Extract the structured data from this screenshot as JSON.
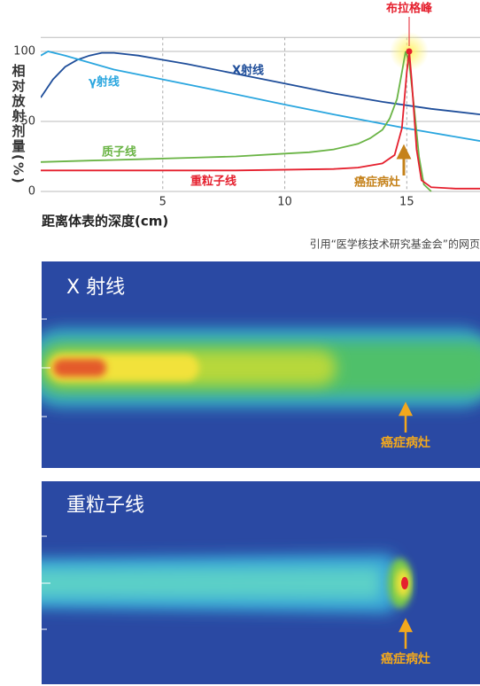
{
  "chart_data": {
    "type": "line",
    "ylabel": "相对放射剂量(%)",
    "xlabel": "距离体表的深度(cm)",
    "xlim": [
      0,
      18
    ],
    "ylim": [
      0,
      110
    ],
    "xticks": [
      5,
      10,
      15
    ],
    "yticks": [
      0,
      50,
      100
    ],
    "grid": true,
    "series": [
      {
        "name": "X射线",
        "color": "#1f4e9a",
        "x": [
          0,
          0.5,
          1,
          1.5,
          2,
          2.5,
          3,
          4,
          5,
          6,
          8,
          10,
          12,
          14,
          16,
          18
        ],
        "values": [
          67,
          80,
          89,
          94,
          97,
          99,
          99,
          97,
          94,
          91,
          84,
          77,
          70,
          64,
          59,
          55
        ]
      },
      {
        "name": "γ射线",
        "color": "#2aa6df",
        "x": [
          0,
          0.3,
          1,
          2,
          3,
          5,
          7,
          10,
          12,
          15,
          18
        ],
        "values": [
          97,
          100,
          97,
          92,
          87,
          80,
          73,
          62,
          55,
          45,
          36
        ]
      },
      {
        "name": "质子线",
        "color": "#6ab445",
        "x": [
          0,
          2,
          4,
          6,
          8,
          10,
          11,
          12,
          13,
          13.5,
          14,
          14.3,
          14.6,
          14.8,
          14.95,
          15.1,
          15.3,
          15.5,
          15.7,
          16
        ],
        "values": [
          21,
          22,
          23,
          24,
          25,
          27,
          28,
          30,
          34,
          38,
          44,
          52,
          66,
          85,
          100,
          92,
          60,
          25,
          5,
          0
        ]
      },
      {
        "name": "重粒子线",
        "color": "#e5202e",
        "x": [
          0,
          4,
          8,
          12,
          13,
          14,
          14.5,
          14.8,
          15,
          15.1,
          15.2,
          15.4,
          15.6,
          16,
          17,
          18
        ],
        "values": [
          15,
          15,
          15,
          16,
          17,
          20,
          26,
          45,
          85,
          100,
          80,
          30,
          8,
          3,
          2,
          2
        ]
      }
    ],
    "annotations": [
      "布拉格峰",
      "癌症病灶"
    ]
  },
  "source_note": "引用“医学核技术研究基金会”的网页",
  "panels": [
    {
      "label": "X 射线",
      "annotation": "癌症病灶"
    },
    {
      "label": "重粒子线",
      "annotation": "癌症病灶"
    }
  ]
}
